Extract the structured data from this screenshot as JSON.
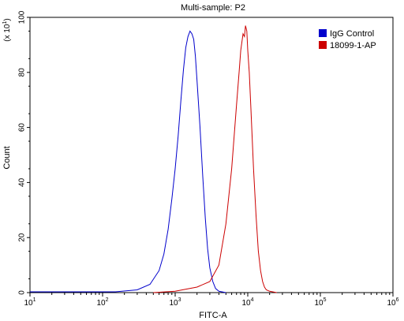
{
  "chart_data": {
    "type": "line",
    "title": "Multi-sample: P2",
    "xlabel": "FITC-A",
    "ylabel": "Count",
    "y_multiplier_label": "(x 10",
    "y_multiplier_exp": "1",
    "y_multiplier_close": ")",
    "x_scale": "log",
    "xlim": [
      10,
      1000000
    ],
    "ylim": [
      0,
      100
    ],
    "x_ticks": [
      {
        "value": 10,
        "base": "10",
        "exp": "1"
      },
      {
        "value": 100,
        "base": "10",
        "exp": "2"
      },
      {
        "value": 1000,
        "base": "10",
        "exp": "3"
      },
      {
        "value": 10000,
        "base": "10",
        "exp": "4"
      },
      {
        "value": 100000,
        "base": "10",
        "exp": "5"
      },
      {
        "value": 1000000,
        "base": "10",
        "exp": "6"
      }
    ],
    "y_ticks": [
      0,
      20,
      40,
      60,
      80,
      100
    ],
    "grid": false,
    "legend_position": "top-right",
    "series": [
      {
        "name": "IgG Control",
        "color": "#0000cc",
        "x": [
          10,
          150,
          300,
          450,
          600,
          700,
          800,
          900,
          1000,
          1100,
          1200,
          1300,
          1400,
          1500,
          1600,
          1700,
          1800,
          1900,
          2000,
          2200,
          2400,
          2600,
          2800,
          3000,
          3300,
          3600,
          4000,
          5000
        ],
        "y": [
          0.3,
          0.3,
          1,
          3,
          8,
          14,
          23,
          34,
          45,
          57,
          70,
          81,
          89,
          93,
          95,
          94,
          92,
          86,
          77,
          60,
          42,
          27,
          16,
          9,
          4,
          1.5,
          0.5,
          0
        ]
      },
      {
        "name": "18099-1-AP",
        "color": "#cc0000",
        "x": [
          500,
          1000,
          2000,
          3000,
          4000,
          5000,
          6000,
          7000,
          7600,
          8000,
          8600,
          9000,
          9300,
          9700,
          10000,
          10500,
          11000,
          12000,
          13000,
          14000,
          15000,
          16000,
          17000,
          18000,
          20000,
          25000
        ],
        "y": [
          0,
          0.5,
          2,
          4,
          10,
          25,
          45,
          68,
          80,
          88,
          94,
          93,
          97,
          95,
          88,
          80,
          68,
          45,
          28,
          15,
          8,
          4,
          2,
          1,
          0.5,
          0
        ]
      }
    ]
  }
}
